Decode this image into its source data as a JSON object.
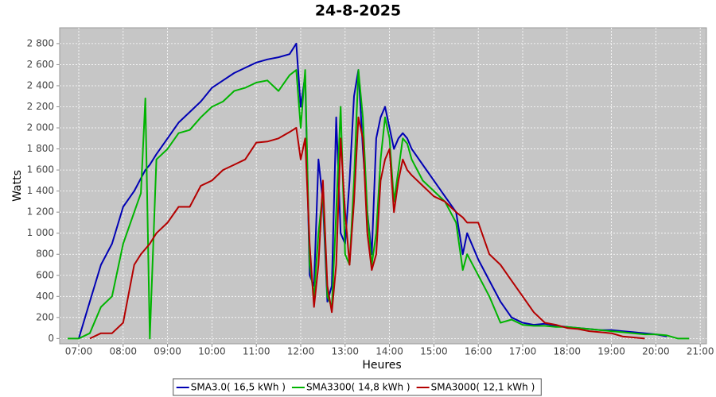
{
  "chart_data": {
    "type": "line",
    "title": "24-8-2025",
    "x_label": "Heures",
    "y_label": "Watts",
    "x": [
      6.75,
      7,
      7.25,
      7.5,
      7.75,
      8,
      8.25,
      8.4,
      8.5,
      8.6,
      8.75,
      9,
      9.25,
      9.5,
      9.75,
      10,
      10.25,
      10.5,
      10.75,
      11,
      11.25,
      11.5,
      11.75,
      11.9,
      12,
      12.1,
      12.2,
      12.3,
      12.4,
      12.5,
      12.6,
      12.7,
      12.8,
      12.9,
      13,
      13.1,
      13.2,
      13.3,
      13.4,
      13.5,
      13.6,
      13.7,
      13.8,
      13.9,
      14,
      14.1,
      14.2,
      14.3,
      14.4,
      14.5,
      14.75,
      15,
      15.25,
      15.5,
      15.65,
      15.75,
      16,
      16.25,
      16.5,
      16.75,
      17,
      17.25,
      17.5,
      17.75,
      18,
      18.25,
      18.5,
      18.75,
      19,
      19.25,
      19.5,
      19.75,
      20,
      20.25,
      20.5,
      20.75
    ],
    "series": [
      {
        "name": "SMA3.0( 16,5 kWh )",
        "color": "#0000b4",
        "values": [
          null,
          0,
          350,
          700,
          900,
          1250,
          1400,
          1520,
          1600,
          1650,
          1750,
          1900,
          2050,
          2150,
          2250,
          2380,
          2450,
          2520,
          2570,
          2620,
          2650,
          2670,
          2700,
          2800,
          2200,
          2500,
          600,
          500,
          1700,
          1300,
          350,
          500,
          2100,
          1000,
          900,
          1500,
          2300,
          2550,
          1800,
          1200,
          800,
          1900,
          2100,
          2200,
          2000,
          1800,
          1900,
          1950,
          1900,
          1800,
          1650,
          1500,
          1350,
          1200,
          800,
          1000,
          750,
          550,
          350,
          200,
          150,
          130,
          140,
          120,
          110,
          100,
          90,
          80,
          80,
          70,
          60,
          50,
          40,
          20,
          null,
          null
        ]
      },
      {
        "name": "SMA3300( 14,8 kWh )",
        "color": "#00b400",
        "values": [
          0,
          0,
          50,
          300,
          400,
          900,
          1200,
          1380,
          2280,
          0,
          1700,
          1800,
          1950,
          1980,
          2100,
          2200,
          2250,
          2350,
          2380,
          2430,
          2450,
          2350,
          2500,
          2550,
          2000,
          2550,
          700,
          400,
          1000,
          1400,
          400,
          300,
          1200,
          2200,
          800,
          700,
          1500,
          2550,
          2100,
          1200,
          700,
          1000,
          1700,
          2100,
          1900,
          1300,
          1600,
          1900,
          1850,
          1700,
          1500,
          1400,
          1300,
          1100,
          650,
          800,
          600,
          400,
          150,
          180,
          130,
          120,
          120,
          110,
          110,
          100,
          90,
          80,
          70,
          60,
          50,
          40,
          40,
          30,
          0,
          0
        ]
      },
      {
        "name": "SMA3000( 12,1 kWh )",
        "color": "#b40000",
        "values": [
          null,
          null,
          0,
          50,
          50,
          150,
          700,
          800,
          850,
          900,
          1000,
          1100,
          1250,
          1250,
          1450,
          1500,
          1600,
          1650,
          1700,
          1860,
          1870,
          1900,
          1960,
          2000,
          1700,
          1900,
          900,
          300,
          700,
          1500,
          500,
          250,
          700,
          1900,
          1200,
          700,
          1300,
          2100,
          1900,
          1000,
          650,
          800,
          1500,
          1700,
          1800,
          1200,
          1500,
          1700,
          1600,
          1550,
          1450,
          1350,
          1300,
          1200,
          1150,
          1100,
          1100,
          800,
          700,
          550,
          400,
          250,
          150,
          130,
          100,
          90,
          70,
          60,
          50,
          20,
          10,
          0,
          null,
          null,
          null,
          null
        ]
      }
    ],
    "xlim": [
      6.57,
      21.14
    ],
    "xticks": [
      {
        "value": 7,
        "label": "07:00"
      },
      {
        "value": 8,
        "label": "08:00"
      },
      {
        "value": 9,
        "label": "09:00"
      },
      {
        "value": 10,
        "label": "10:00"
      },
      {
        "value": 11,
        "label": "11:00"
      },
      {
        "value": 12,
        "label": "12:00"
      },
      {
        "value": 13,
        "label": "13:00"
      },
      {
        "value": 14,
        "label": "14:00"
      },
      {
        "value": 15,
        "label": "15:00"
      },
      {
        "value": 16,
        "label": "16:00"
      },
      {
        "value": 17,
        "label": "17:00"
      },
      {
        "value": 18,
        "label": "18:00"
      },
      {
        "value": 19,
        "label": "19:00"
      },
      {
        "value": 20,
        "label": "20:00"
      },
      {
        "value": 21,
        "label": "21:00"
      }
    ],
    "ylim": [
      -50,
      2950
    ],
    "yticks": [
      0,
      200,
      400,
      600,
      800,
      {
        "value": 1000,
        "label": "1 000"
      },
      {
        "value": 1200,
        "label": "1 200"
      },
      {
        "value": 1400,
        "label": "1 400"
      },
      {
        "value": 1600,
        "label": "1 600"
      },
      {
        "value": 1800,
        "label": "1 800"
      },
      {
        "value": 2000,
        "label": "2 000"
      },
      {
        "value": 2200,
        "label": "2 200"
      },
      {
        "value": 2400,
        "label": "2 400"
      },
      {
        "value": 2600,
        "label": "2 600"
      },
      {
        "value": 2800,
        "label": "2 800"
      }
    ],
    "grid": true,
    "legend": "bottom"
  }
}
